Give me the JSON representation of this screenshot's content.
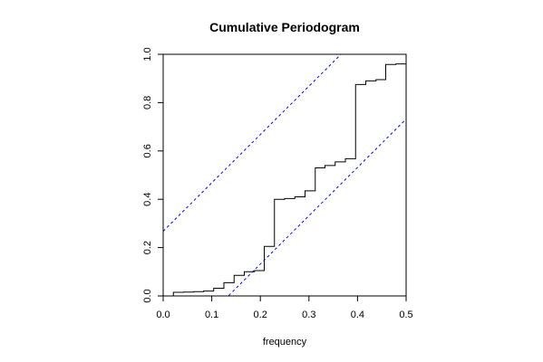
{
  "chart_data": {
    "type": "line",
    "title": "Cumulative Periodogram",
    "xlabel": "frequency",
    "ylabel": "",
    "xlim": [
      0,
      0.5
    ],
    "ylim": [
      0,
      1
    ],
    "x_ticks": [
      0,
      0.1,
      0.2,
      0.3,
      0.4,
      0.5
    ],
    "x_tick_labels": [
      "0.0",
      "0.1",
      "0.2",
      "0.3",
      "0.4",
      "0.5"
    ],
    "y_ticks": [
      0,
      0.2,
      0.4,
      0.6,
      0.8,
      1.0
    ],
    "y_tick_labels": [
      "0.0",
      "0.2",
      "0.4",
      "0.6",
      "0.8",
      "1.0"
    ],
    "grid": false,
    "series": [
      {
        "type": "step",
        "color": "#000000",
        "x": [
          0.021,
          0.042,
          0.063,
          0.083,
          0.104,
          0.125,
          0.146,
          0.167,
          0.188,
          0.208,
          0.229,
          0.25,
          0.271,
          0.292,
          0.313,
          0.333,
          0.354,
          0.375,
          0.396,
          0.417,
          0.438,
          0.458,
          0.479,
          0.5
        ],
        "y": [
          0.015,
          0.016,
          0.018,
          0.02,
          0.032,
          0.055,
          0.085,
          0.1,
          0.105,
          0.205,
          0.4,
          0.403,
          0.41,
          0.435,
          0.53,
          0.54,
          0.555,
          0.568,
          0.875,
          0.89,
          0.895,
          0.958,
          0.96,
          0.962
        ]
      },
      {
        "type": "dashed-line",
        "color": "#0000ff",
        "x": [
          0,
          0.5
        ],
        "y": [
          0.268,
          1.268
        ]
      },
      {
        "type": "dashed-line",
        "color": "#0000ff",
        "x": [
          0,
          0.5
        ],
        "y": [
          -0.268,
          0.732
        ]
      }
    ]
  }
}
